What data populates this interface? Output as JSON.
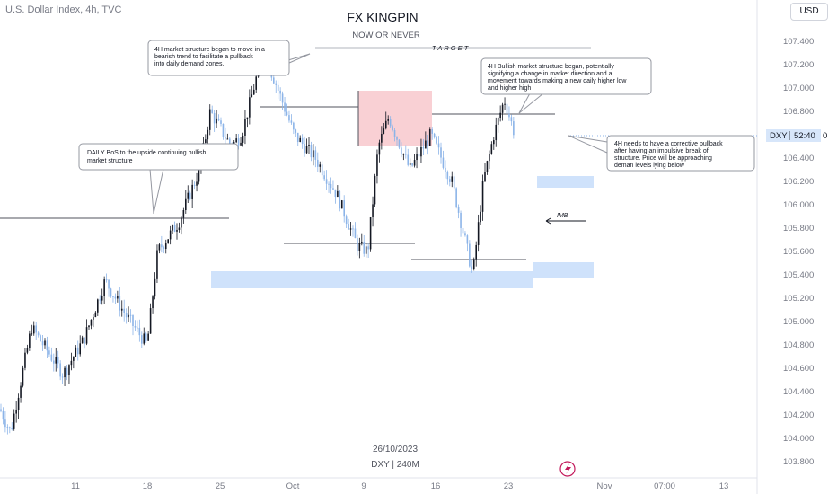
{
  "header": {
    "symbol_line": "U.S. Dollar Index, 4h, TVC",
    "currency": "USD"
  },
  "watermark": {
    "title": "FX KINGPIN",
    "subtitle": "NOW OR NEVER",
    "date": "26/10/2023",
    "symbol": "DXY | 240M"
  },
  "axis": {
    "y_ticks": [
      "107.400",
      "107.200",
      "107.000",
      "106.800",
      "106.600",
      "106.400",
      "106.200",
      "106.000",
      "105.800",
      "105.600",
      "105.400",
      "105.200",
      "105.000",
      "104.800",
      "104.600",
      "104.400",
      "104.200",
      "104.000",
      "103.800"
    ],
    "x_ticks": [
      "11",
      "18",
      "25",
      "Oct",
      "9",
      "16",
      "23",
      "Nov",
      "07:00",
      "13"
    ]
  },
  "price_badge": {
    "symbol": "DXY",
    "countdown": "52:40"
  },
  "annotations": {
    "target": "T A R G E T",
    "imb": "IMB",
    "daily_bos": "DAILY BoS to the upside continuing bullish market structure",
    "bearish": "4H market structure began to move in a bearish trend to facilitate a pullback into daily demand zones.",
    "bullish": "4H Bullish market structure began, potentially signifying a change in market direction and a movement towards making a new daily higher low and higher high",
    "pullback": "4H needs to have a corrective pullback after having an impulsive break of structure. Price will be approaching deman levels lying below"
  },
  "chart_data": {
    "type": "candlestick",
    "series_name": "U.S. Dollar Index, 4h, TVC",
    "x_range": [
      "Sep 8",
      "Nov 14"
    ],
    "ylim": [
      103.75,
      107.5
    ],
    "y_unit": "index points",
    "path_points": [
      {
        "date": "Sep 8",
        "price": 104.25
      },
      {
        "date": "Sep 9",
        "price": 104.05
      },
      {
        "date": "Sep 11",
        "price": 104.95
      },
      {
        "date": "Sep 14",
        "price": 104.55
      },
      {
        "date": "Sep 16",
        "price": 104.85
      },
      {
        "date": "Sep 18",
        "price": 105.35
      },
      {
        "date": "Sep 20",
        "price": 105.05
      },
      {
        "date": "Sep 22",
        "price": 104.8
      },
      {
        "date": "Sep 23",
        "price": 105.6
      },
      {
        "date": "Sep 25",
        "price": 105.85
      },
      {
        "date": "Sep 27",
        "price": 106.3
      },
      {
        "date": "Sep 28",
        "price": 106.8
      },
      {
        "date": "Sep 30",
        "price": 106.5
      },
      {
        "date": "Oct 1",
        "price": 106.6
      },
      {
        "date": "Oct 3",
        "price": 107.3
      },
      {
        "date": "Oct 4",
        "price": 107.1
      },
      {
        "date": "Oct 6",
        "price": 106.6
      },
      {
        "date": "Oct 8",
        "price": 106.4
      },
      {
        "date": "Oct 10",
        "price": 106.1
      },
      {
        "date": "Oct 12",
        "price": 105.65
      },
      {
        "date": "Oct 13",
        "price": 105.6
      },
      {
        "date": "Oct 14",
        "price": 106.5
      },
      {
        "date": "Oct 15",
        "price": 106.75
      },
      {
        "date": "Oct 17",
        "price": 106.3
      },
      {
        "date": "Oct 19",
        "price": 106.6
      },
      {
        "date": "Oct 21",
        "price": 106.2
      },
      {
        "date": "Oct 23",
        "price": 105.4
      },
      {
        "date": "Oct 24",
        "price": 106.2
      },
      {
        "date": "Oct 25",
        "price": 106.6
      },
      {
        "date": "Oct 26",
        "price": 106.9
      },
      {
        "date": "Oct 27",
        "price": 106.6
      }
    ],
    "last_price": 106.6,
    "levels": [
      {
        "name": "target",
        "price": 107.3
      },
      {
        "name": "daily-bos",
        "price": 105.9
      },
      {
        "name": "4h-structure-high",
        "price": 106.76
      }
    ],
    "zones": [
      {
        "name": "supply-zone",
        "from": "Oct 14",
        "to": "Oct 22",
        "top": 106.98,
        "bottom": 106.5,
        "color": "#f8c8cc"
      },
      {
        "name": "demand-zone-upper",
        "from": "Oct 24",
        "to": "Nov 3",
        "top": 106.25,
        "bottom": 106.15,
        "color": "#cfe2fb"
      },
      {
        "name": "demand-zone-lower",
        "from": "Sep 25",
        "to": "Nov 3",
        "top": 105.5,
        "bottom": 105.38,
        "color": "#cfe2fb"
      }
    ],
    "colors": {
      "up": "#131722",
      "down": "#8cb4e8",
      "axis_text": "#787b86",
      "badge": "#d7e6fa"
    }
  }
}
